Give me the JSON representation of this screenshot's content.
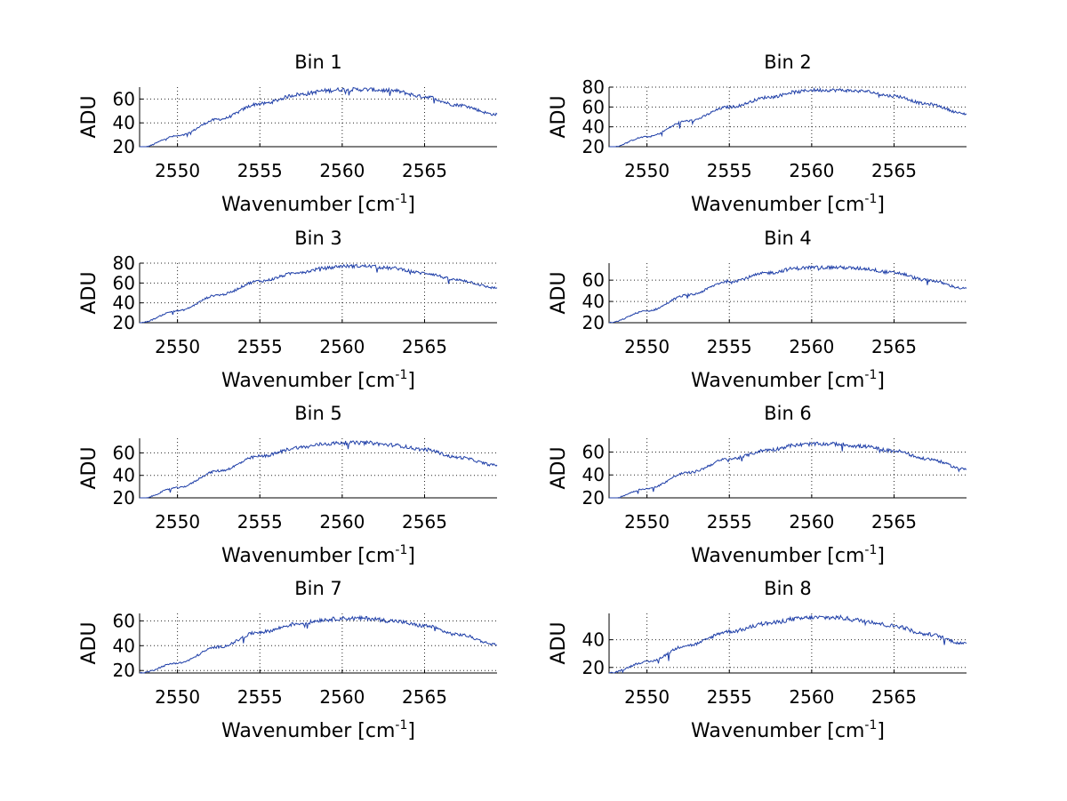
{
  "chart_data": [
    {
      "type": "line",
      "title": "Bin 1",
      "xlabel": "Wavenumber [cm",
      "xlabel_sup": "-1",
      "xlabel_close": "]",
      "ylabel": "ADU",
      "xlim": [
        2547.7,
        2569.4
      ],
      "ylim": [
        20,
        70
      ],
      "xticks": [
        2550,
        2555,
        2560,
        2565
      ],
      "yticks": [
        20,
        40,
        60
      ],
      "series": [
        {
          "name": "Bin 1",
          "x": [
            2547.7,
            2550,
            2552.5,
            2555,
            2557.5,
            2559,
            2560,
            2561.5,
            2563,
            2565,
            2567,
            2569.4
          ],
          "y": [
            19,
            29,
            43,
            56,
            64,
            67,
            68,
            68,
            67,
            62,
            55,
            47
          ]
        }
      ]
    },
    {
      "type": "line",
      "title": "Bin 2",
      "xlabel": "Wavenumber [cm",
      "xlabel_sup": "-1",
      "xlabel_close": "]",
      "ylabel": "ADU",
      "xlim": [
        2547.7,
        2569.4
      ],
      "ylim": [
        20,
        80
      ],
      "xticks": [
        2550,
        2555,
        2560,
        2565
      ],
      "yticks": [
        20,
        40,
        60,
        80
      ],
      "series": [
        {
          "name": "Bin 2",
          "x": [
            2547.7,
            2550,
            2552.5,
            2555,
            2557.5,
            2559,
            2560,
            2561.5,
            2563,
            2565,
            2567,
            2569.4
          ],
          "y": [
            19,
            30,
            46,
            60,
            70,
            75,
            77,
            77,
            76,
            71,
            63,
            53
          ]
        }
      ]
    },
    {
      "type": "line",
      "title": "Bin 3",
      "xlabel": "Wavenumber [cm",
      "xlabel_sup": "-1",
      "xlabel_close": "]",
      "ylabel": "ADU",
      "xlim": [
        2547.7,
        2569.4
      ],
      "ylim": [
        20,
        80
      ],
      "xticks": [
        2550,
        2555,
        2560,
        2565
      ],
      "yticks": [
        20,
        40,
        60,
        80
      ],
      "series": [
        {
          "name": "Bin 3",
          "x": [
            2547.7,
            2550,
            2552.5,
            2555,
            2557.5,
            2559,
            2560,
            2561.5,
            2563,
            2565,
            2567,
            2569.4
          ],
          "y": [
            20,
            32,
            48,
            62,
            71,
            75,
            77,
            77,
            75,
            70,
            63,
            55
          ]
        }
      ]
    },
    {
      "type": "line",
      "title": "Bin 4",
      "xlabel": "Wavenumber [cm",
      "xlabel_sup": "-1",
      "xlabel_close": "]",
      "ylabel": "ADU",
      "xlim": [
        2547.7,
        2569.4
      ],
      "ylim": [
        20,
        76
      ],
      "xticks": [
        2550,
        2555,
        2560,
        2565
      ],
      "yticks": [
        20,
        40,
        60
      ],
      "series": [
        {
          "name": "Bin 4",
          "x": [
            2547.7,
            2550,
            2552.5,
            2555,
            2557.5,
            2559,
            2560,
            2561.5,
            2563,
            2565,
            2567,
            2569.4
          ],
          "y": [
            20,
            31,
            46,
            59,
            67,
            71,
            72,
            72,
            71,
            67,
            60,
            52
          ]
        }
      ]
    },
    {
      "type": "line",
      "title": "Bin 5",
      "xlabel": "Wavenumber [cm",
      "xlabel_sup": "-1",
      "xlabel_close": "]",
      "ylabel": "ADU",
      "xlim": [
        2547.7,
        2569.4
      ],
      "ylim": [
        20,
        73
      ],
      "xticks": [
        2550,
        2555,
        2560,
        2565
      ],
      "yticks": [
        20,
        40,
        60
      ],
      "series": [
        {
          "name": "Bin 5",
          "x": [
            2547.7,
            2550,
            2552.5,
            2555,
            2557.5,
            2559,
            2560,
            2561.5,
            2563,
            2565,
            2567,
            2569.4
          ],
          "y": [
            19,
            29,
            44,
            57,
            65,
            68,
            69,
            69,
            67,
            63,
            56,
            49
          ]
        }
      ]
    },
    {
      "type": "line",
      "title": "Bin 6",
      "xlabel": "Wavenumber [cm",
      "xlabel_sup": "-1",
      "xlabel_close": "]",
      "ylabel": "ADU",
      "xlim": [
        2547.7,
        2569.4
      ],
      "ylim": [
        20,
        72
      ],
      "xticks": [
        2550,
        2555,
        2560,
        2565
      ],
      "yticks": [
        20,
        40,
        60
      ],
      "series": [
        {
          "name": "Bin 6",
          "x": [
            2547.7,
            2550,
            2552.5,
            2555,
            2557.5,
            2559,
            2560,
            2561.5,
            2563,
            2565,
            2567,
            2569.4
          ],
          "y": [
            19,
            28,
            42,
            54,
            62,
            66,
            67,
            67,
            65,
            61,
            54,
            45
          ]
        }
      ]
    },
    {
      "type": "line",
      "title": "Bin 7",
      "xlabel": "Wavenumber [cm",
      "xlabel_sup": "-1",
      "xlabel_close": "]",
      "ylabel": "ADU",
      "xlim": [
        2547.7,
        2569.4
      ],
      "ylim": [
        18,
        66
      ],
      "xticks": [
        2550,
        2555,
        2560,
        2565
      ],
      "yticks": [
        20,
        40,
        60
      ],
      "series": [
        {
          "name": "Bin 7",
          "x": [
            2547.7,
            2550,
            2552.5,
            2555,
            2557.5,
            2559,
            2560,
            2561.5,
            2563,
            2565,
            2567,
            2569.4
          ],
          "y": [
            18,
            26,
            39,
            51,
            58,
            61,
            62,
            62,
            60,
            56,
            49,
            41
          ]
        }
      ]
    },
    {
      "type": "line",
      "title": "Bin 8",
      "xlabel": "Wavenumber [cm",
      "xlabel_sup": "-1",
      "xlabel_close": "]",
      "ylabel": "ADU",
      "xlim": [
        2547.7,
        2569.4
      ],
      "ylim": [
        16,
        59
      ],
      "xticks": [
        2550,
        2555,
        2560,
        2565
      ],
      "yticks": [
        20,
        40
      ],
      "series": [
        {
          "name": "Bin 8",
          "x": [
            2547.7,
            2550,
            2552.5,
            2555,
            2557.5,
            2559,
            2560,
            2561.5,
            2563,
            2565,
            2567,
            2569.4
          ],
          "y": [
            16,
            24,
            36,
            46,
            52,
            55,
            56,
            56,
            54,
            50,
            44,
            37
          ]
        }
      ]
    }
  ],
  "colors": {
    "line": "#1f3fa8",
    "axis": "#000000",
    "grid": "#262626"
  }
}
